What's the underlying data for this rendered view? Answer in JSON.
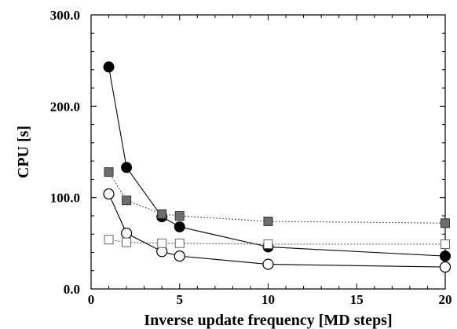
{
  "chart_data": {
    "type": "line",
    "title": "",
    "xlabel": "Inverse update frequency [MD steps]",
    "ylabel": "CPU [s]",
    "xlim": [
      0,
      20
    ],
    "ylim": [
      0,
      300
    ],
    "x_ticks": [
      0,
      5,
      10,
      15,
      20
    ],
    "x_tick_labels": [
      "0",
      "5",
      "10",
      "15",
      "20"
    ],
    "y_ticks": [
      0,
      100,
      200,
      300
    ],
    "y_tick_labels": [
      "0.0",
      "100.0",
      "200.0",
      "300.0"
    ],
    "grid": false,
    "legend": "none",
    "series": [
      {
        "marker": "filled-circle",
        "line": "solid",
        "color": "#000000",
        "x": [
          1,
          2,
          4,
          5,
          10,
          20
        ],
        "y": [
          243,
          133,
          79,
          68,
          46,
          36
        ]
      },
      {
        "marker": "open-circle",
        "line": "solid",
        "color": "#000000",
        "x": [
          1,
          2,
          4,
          5,
          10,
          20
        ],
        "y": [
          104,
          61,
          41,
          36,
          27,
          24
        ]
      },
      {
        "marker": "gray-square",
        "line": "dotted",
        "color": "#555555",
        "x": [
          1,
          2,
          4,
          5,
          10,
          20
        ],
        "y": [
          128,
          97,
          82,
          80,
          74,
          72
        ]
      },
      {
        "marker": "open-square",
        "line": "dotted",
        "color": "#555555",
        "x": [
          1,
          2,
          4,
          5,
          10,
          20
        ],
        "y": [
          54,
          51,
          50,
          50,
          49,
          49
        ]
      }
    ]
  }
}
